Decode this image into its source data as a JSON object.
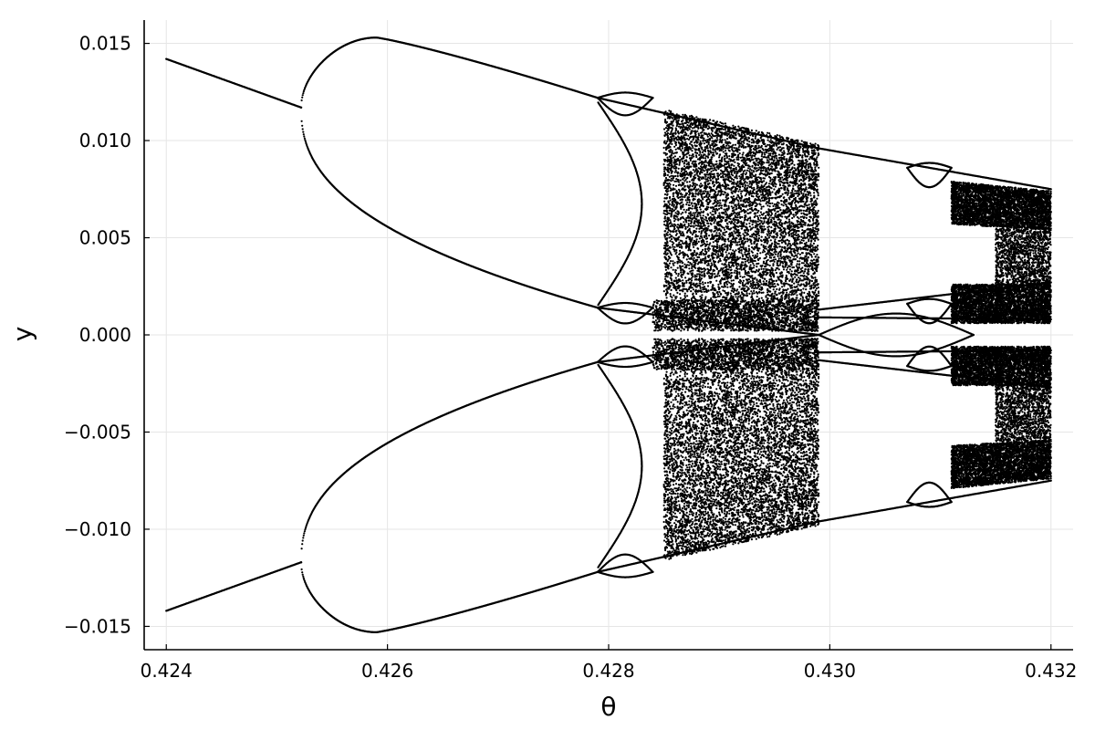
{
  "chart_data": {
    "type": "scatter",
    "title": "",
    "xlabel": "θ",
    "ylabel": "y",
    "xlim": [
      0.4238,
      0.4322
    ],
    "ylim": [
      -0.0162,
      0.0162
    ],
    "x_ticks": [
      0.424,
      0.426,
      0.428,
      0.43,
      0.432
    ],
    "x_tick_labels": [
      "0.424",
      "0.426",
      "0.428",
      "0.430",
      "0.432"
    ],
    "y_ticks": [
      0.015,
      0.01,
      0.005,
      0.0,
      -0.005,
      -0.01,
      -0.015
    ],
    "y_tick_labels": [
      "0.015",
      "0.010",
      "0.005",
      "0.000",
      "−0.005",
      "−0.010",
      "−0.015"
    ],
    "grid": true,
    "legend": "none",
    "marker_color": "#000000",
    "description_points": {
      "fixed_branch": [
        [
          0.424,
          0.0142
        ],
        [
          0.4252,
          0.0117
        ]
      ],
      "period2_upper_peak": [
        [
          0.4259,
          0.0153
        ],
        [
          0.4279,
          0.0122
        ]
      ],
      "period2_lower_branch": [
        [
          0.4252,
          0.0103
        ],
        [
          0.4279,
          0.0014
        ]
      ],
      "chaos_band_1": [
        0.4285,
        0.4299
      ],
      "periodic_window": [
        0.4299,
        0.4315
      ],
      "chaos_band_2": [
        0.4315,
        0.432
      ]
    }
  }
}
